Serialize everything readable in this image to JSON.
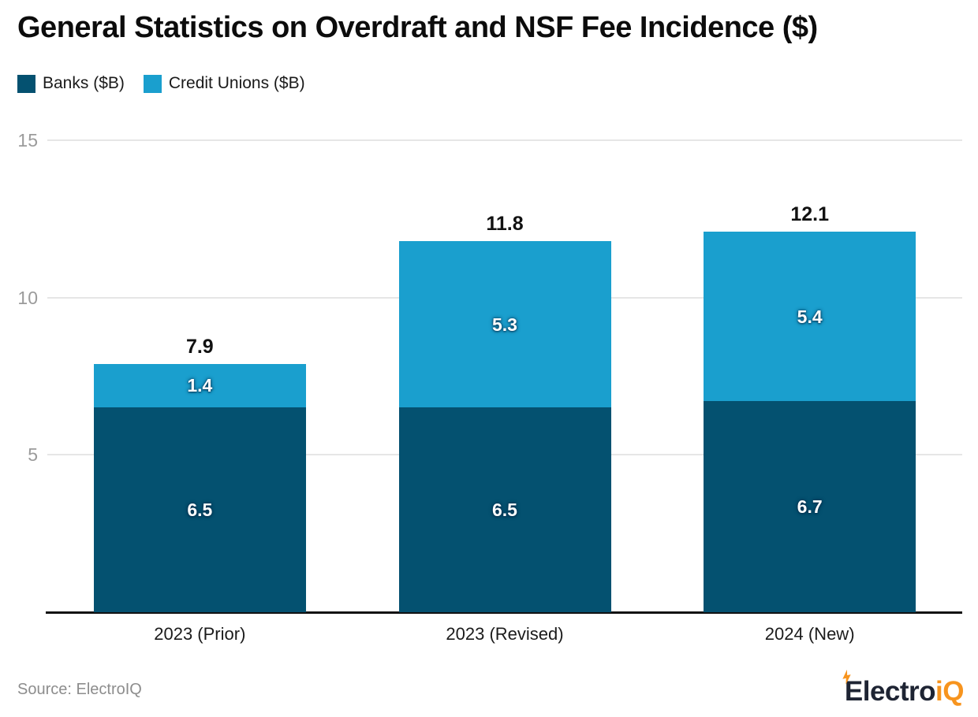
{
  "title": "General Statistics on Overdraft and NSF Fee Incidence ($)",
  "source": "Source: ElectroIQ",
  "logo": {
    "text_dark": "Electro",
    "text_accent": "iQ"
  },
  "colors": {
    "banks": "#045170",
    "credit_unions": "#1a9fce",
    "gridline": "#e6e6e6",
    "baseline": "#111111",
    "y_tick_text": "#9b9b9b",
    "x_label_text": "#1b1b1b",
    "title_text": "#0c0c0c",
    "source_text": "#8d8d8d",
    "logo_dark": "#1e2433",
    "logo_accent": "#f7941e"
  },
  "chart_data": {
    "type": "bar",
    "stacked": true,
    "title": "General Statistics on Overdraft and NSF Fee Incidence ($)",
    "categories": [
      "2023 (Prior)",
      "2023 (Revised)",
      "2024 (New)"
    ],
    "series": [
      {
        "name": "Banks ($B)",
        "color": "#045170",
        "values": [
          6.5,
          6.5,
          6.7
        ]
      },
      {
        "name": "Credit Unions ($B)",
        "color": "#1a9fce",
        "values": [
          1.4,
          5.3,
          5.4
        ]
      }
    ],
    "totals": [
      7.9,
      11.8,
      12.1
    ],
    "xlabel": "",
    "ylabel": "",
    "ylim": [
      0,
      15
    ],
    "yticks": [
      5,
      10,
      15
    ],
    "grid": true,
    "legend_position": "top-left"
  }
}
